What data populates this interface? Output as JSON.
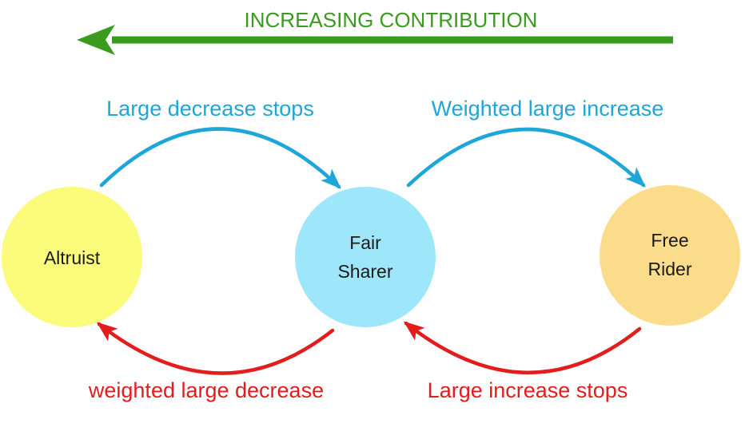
{
  "header": {
    "label": "INCREASING CONTRIBUTION",
    "color": "#3b9b1f"
  },
  "nodes": [
    {
      "id": "altruist",
      "lines": [
        "Altruist"
      ],
      "fill": "#fbfb7c"
    },
    {
      "id": "fair-sharer",
      "lines": [
        "Fair",
        "Sharer"
      ],
      "fill": "#9ee6fa"
    },
    {
      "id": "free-rider",
      "lines": [
        "Free",
        "Rider"
      ],
      "fill": "#fbdc8a"
    }
  ],
  "edges": [
    {
      "id": "altruist-to-fair-sharer",
      "from": "altruist",
      "to": "fair-sharer",
      "label": "Large decrease stops",
      "color": "#1ea6d8"
    },
    {
      "id": "fair-sharer-to-free-rider",
      "from": "fair-sharer",
      "to": "free-rider",
      "label": "Weighted large increase",
      "color": "#1ea6d8"
    },
    {
      "id": "fair-sharer-to-altruist",
      "from": "fair-sharer",
      "to": "altruist",
      "label": "weighted large decrease",
      "color": "#e31c1c"
    },
    {
      "id": "free-rider-to-fair-sharer",
      "from": "free-rider",
      "to": "fair-sharer",
      "label": "Large increase stops",
      "color": "#e31c1c"
    }
  ]
}
